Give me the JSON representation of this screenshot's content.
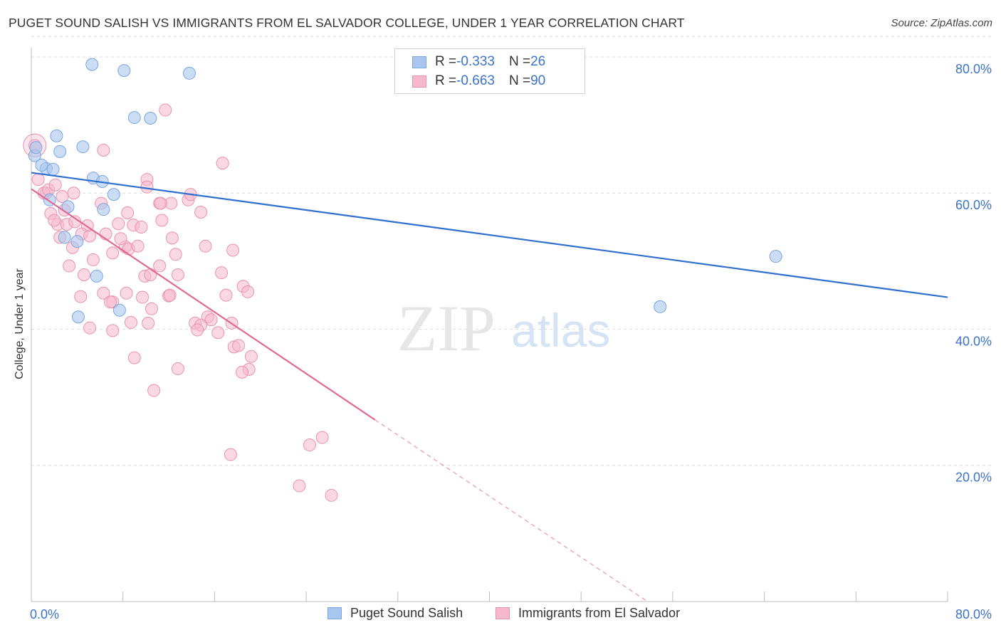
{
  "title": "PUGET SOUND SALISH VS IMMIGRANTS FROM EL SALVADOR COLLEGE, UNDER 1 YEAR CORRELATION CHART",
  "source": "Source: ZipAtlas.com",
  "watermark": {
    "zip": "ZIP",
    "atlas": "atlas"
  },
  "legend": {
    "series1": {
      "r_label": "R = ",
      "r_value": "-0.333",
      "n_label": "N = ",
      "n_value": "26"
    },
    "series2": {
      "r_label": "R = ",
      "r_value": "-0.663",
      "n_label": "N = ",
      "n_value": "90"
    }
  },
  "colors": {
    "blue_fill": "#a9c6ef",
    "blue_stroke": "#7aa6e0",
    "blue_line": "#2f6fcf",
    "pink_fill": "#f6b8cc",
    "pink_stroke": "#e992af",
    "pink_line": "#e06892",
    "grid": "#dddddd",
    "axis_text": "#3b73c8"
  },
  "chart_data": {
    "type": "scatter",
    "title": "PUGET SOUND SALISH VS IMMIGRANTS FROM EL SALVADOR COLLEGE, UNDER 1 YEAR CORRELATION CHART",
    "xlabel": "",
    "ylabel": "College, Under 1 year",
    "xlim": [
      0,
      80
    ],
    "ylim": [
      0,
      83
    ],
    "x_tick_labels": [
      "0.0%",
      "80.0%"
    ],
    "y_tick_values": [
      20,
      40,
      60,
      80
    ],
    "y_tick_labels": [
      "20.0%",
      "40.0%",
      "60.0%",
      "80.0%"
    ],
    "grid": true,
    "legend_position": "bottom",
    "series": [
      {
        "name": "Puget Sound Salish",
        "r": -0.333,
        "n": 26,
        "trend": {
          "x": [
            0,
            80
          ],
          "y": [
            63.0,
            44.7
          ]
        },
        "points": [
          [
            5.3,
            78.9
          ],
          [
            8.1,
            78.0
          ],
          [
            13.8,
            77.6
          ],
          [
            9.0,
            71.1
          ],
          [
            10.4,
            71.0
          ],
          [
            2.2,
            68.4
          ],
          [
            2.5,
            66.1
          ],
          [
            4.5,
            66.8
          ],
          [
            0.3,
            65.5
          ],
          [
            0.4,
            66.7
          ],
          [
            1.3,
            63.6
          ],
          [
            0.9,
            64.1
          ],
          [
            1.9,
            63.5
          ],
          [
            5.4,
            62.2
          ],
          [
            6.2,
            61.7
          ],
          [
            7.2,
            59.8
          ],
          [
            1.6,
            59.0
          ],
          [
            3.2,
            58.0
          ],
          [
            6.3,
            57.6
          ],
          [
            2.9,
            53.5
          ],
          [
            4.0,
            52.9
          ],
          [
            5.7,
            47.8
          ],
          [
            7.7,
            42.8
          ],
          [
            4.1,
            41.8
          ],
          [
            54.9,
            43.3
          ],
          [
            65.0,
            50.7
          ]
        ]
      },
      {
        "name": "Immigrants from El Salvador",
        "r": -0.663,
        "n": 90,
        "trend": {
          "x": [
            0,
            30.0
          ],
          "y": [
            60.6,
            26.7
          ]
        },
        "trend_dashed": {
          "x": [
            30.0,
            53.8
          ],
          "y": [
            26.7,
            0
          ]
        },
        "points": [
          [
            0.3,
            67.0
          ],
          [
            0.6,
            62.0
          ],
          [
            1.3,
            60.0
          ],
          [
            1.1,
            60.0
          ],
          [
            1.5,
            60.5
          ],
          [
            1.7,
            57.0
          ],
          [
            2.1,
            61.2
          ],
          [
            2.7,
            59.5
          ],
          [
            2.9,
            57.5
          ],
          [
            3.7,
            60.0
          ],
          [
            2.3,
            55.4
          ],
          [
            3.1,
            55.4
          ],
          [
            3.8,
            55.8
          ],
          [
            4.9,
            55.2
          ],
          [
            2.5,
            53.5
          ],
          [
            4.4,
            54.0
          ],
          [
            5.1,
            53.7
          ],
          [
            6.1,
            58.5
          ],
          [
            6.5,
            54.0
          ],
          [
            7.1,
            51.2
          ],
          [
            7.6,
            55.5
          ],
          [
            8.2,
            52.1
          ],
          [
            8.5,
            51.8
          ],
          [
            8.4,
            57.1
          ],
          [
            8.9,
            55.3
          ],
          [
            9.3,
            52.2
          ],
          [
            9.9,
            47.8
          ],
          [
            10.4,
            48.0
          ],
          [
            3.3,
            49.3
          ],
          [
            5.4,
            50.2
          ],
          [
            6.3,
            45.3
          ],
          [
            7.1,
            44.0
          ],
          [
            8.3,
            45.3
          ],
          [
            9.7,
            44.7
          ],
          [
            10.5,
            43.0
          ],
          [
            4.3,
            44.8
          ],
          [
            5.1,
            40.2
          ],
          [
            7.1,
            39.8
          ],
          [
            8.7,
            41.0
          ],
          [
            10.2,
            40.9
          ],
          [
            11.2,
            49.3
          ],
          [
            12.0,
            44.9
          ],
          [
            12.1,
            45.0
          ],
          [
            12.6,
            51.0
          ],
          [
            12.8,
            48.0
          ],
          [
            12.3,
            53.4
          ],
          [
            11.4,
            56.0
          ],
          [
            11.2,
            58.5
          ],
          [
            12.2,
            58.5
          ],
          [
            13.7,
            59.0
          ],
          [
            13.9,
            59.8
          ],
          [
            10.1,
            62.0
          ],
          [
            10.1,
            60.9
          ],
          [
            11.7,
            72.2
          ],
          [
            6.3,
            66.3
          ],
          [
            16.7,
            64.4
          ],
          [
            14.8,
            57.2
          ],
          [
            15.2,
            52.2
          ],
          [
            16.6,
            48.3
          ],
          [
            17.0,
            45.0
          ],
          [
            17.6,
            51.6
          ],
          [
            18.5,
            46.3
          ],
          [
            18.9,
            45.5
          ],
          [
            15.4,
            41.8
          ],
          [
            15.7,
            41.4
          ],
          [
            14.3,
            40.9
          ],
          [
            14.8,
            40.6
          ],
          [
            14.5,
            39.9
          ],
          [
            16.3,
            39.5
          ],
          [
            17.5,
            40.9
          ],
          [
            17.7,
            37.4
          ],
          [
            18.1,
            37.6
          ],
          [
            19.2,
            36.0
          ],
          [
            19.0,
            34.1
          ],
          [
            18.4,
            33.7
          ],
          [
            9.0,
            35.8
          ],
          [
            10.7,
            31.0
          ],
          [
            12.8,
            34.2
          ],
          [
            17.4,
            21.6
          ],
          [
            24.3,
            23.0
          ],
          [
            25.4,
            24.1
          ],
          [
            23.4,
            17.0
          ],
          [
            26.2,
            15.6
          ],
          [
            6.9,
            44.0
          ],
          [
            9.6,
            55.0
          ],
          [
            11.3,
            58.5
          ],
          [
            3.6,
            52.0
          ],
          [
            2.0,
            56.0
          ],
          [
            4.6,
            48.0
          ],
          [
            7.8,
            53.3
          ]
        ]
      }
    ]
  },
  "bottom_legend": {
    "series1": "Puget Sound Salish",
    "series2": "Immigrants from El Salvador"
  }
}
